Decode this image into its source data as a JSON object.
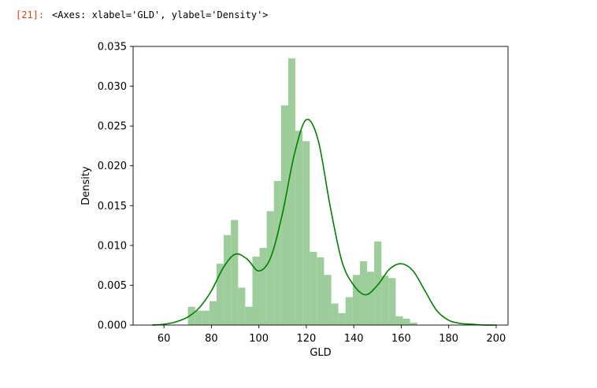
{
  "cell": {
    "prompt": "[21]:",
    "output_repr": "<Axes: xlabel='GLD', ylabel='Density'>"
  },
  "colors": {
    "prompt": "#d84315",
    "bar_fill": "#9ccd9b",
    "kde_line": "#008000",
    "axes": "#000000"
  },
  "chart_data": {
    "type": "bar",
    "subtype": "histogram-with-kde",
    "xlabel": "GLD",
    "ylabel": "Density",
    "xlim": [
      47,
      205
    ],
    "ylim": [
      0,
      0.035
    ],
    "xticks": [
      60,
      80,
      100,
      120,
      140,
      160,
      180,
      200
    ],
    "xtick_labels": [
      "60",
      "80",
      "100",
      "120",
      "140",
      "160",
      "180",
      "200"
    ],
    "yticks": [
      0,
      0.005,
      0.01,
      0.015,
      0.02,
      0.025,
      0.03,
      0.035
    ],
    "ytick_labels": [
      "0.000",
      "0.005",
      "0.010",
      "0.015",
      "0.020",
      "0.025",
      "0.030",
      "0.035"
    ],
    "grid": false,
    "bins": {
      "start": 70.1,
      "width": 3.02,
      "values": [
        0.0023,
        0.0018,
        0.0018,
        0.003,
        0.0077,
        0.0113,
        0.0132,
        0.0047,
        0.0023,
        0.0086,
        0.0097,
        0.0143,
        0.0181,
        0.0276,
        0.0335,
        0.0244,
        0.0231,
        0.0092,
        0.0085,
        0.0063,
        0.0027,
        0.0015,
        0.0035,
        0.0063,
        0.008,
        0.0067,
        0.0105,
        0.0062,
        0.0059,
        0.0011,
        0.0008,
        0.0003
      ]
    },
    "kde": {
      "x": [
        55,
        60,
        65,
        70,
        75,
        80,
        85,
        90,
        95,
        100,
        105,
        110,
        115,
        120,
        125,
        130,
        135,
        140,
        145,
        150,
        155,
        160,
        165,
        170,
        175,
        180,
        185,
        190,
        195,
        200
      ],
      "y": [
        0.0,
        0.0001,
        0.0004,
        0.001,
        0.0022,
        0.0043,
        0.0072,
        0.0089,
        0.0083,
        0.0068,
        0.0085,
        0.0141,
        0.0215,
        0.0258,
        0.0232,
        0.015,
        0.008,
        0.005,
        0.0038,
        0.005,
        0.007,
        0.0077,
        0.0068,
        0.0043,
        0.0018,
        0.0006,
        0.0002,
        0.0001,
        0.0,
        0.0
      ]
    }
  }
}
